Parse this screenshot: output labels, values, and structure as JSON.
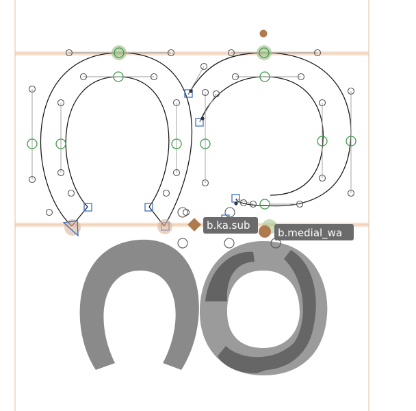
{
  "editor": {
    "colors": {
      "background": "#ffffff",
      "sidebearing": "#e6c8ae",
      "metric_line": "#efc7a8",
      "outline": "#1a1a1a",
      "smooth_node": "#3e9a4a",
      "corner_node": "#3b6fc4",
      "handle": "#333333",
      "anchor": "#b07a4f",
      "glyph_fill": "#8a8a8a",
      "glyph_fill_dark": "#505050",
      "label_bg": "#6b6b6b"
    },
    "anchors": [
      {
        "name": "b.ka.sub"
      },
      {
        "name": "b.medial_wa"
      }
    ]
  }
}
